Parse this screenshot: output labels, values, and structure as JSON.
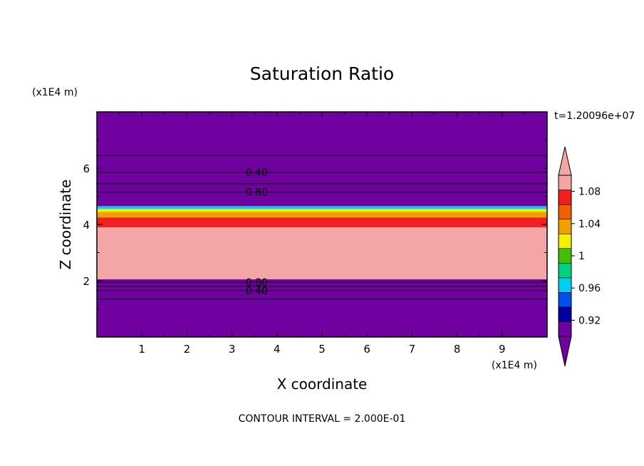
{
  "chart_data": {
    "type": "heatmap",
    "title": "Saturation Ratio",
    "xlabel": "X coordinate",
    "ylabel": "Z coordinate",
    "x_unit": "(x1E4 m)",
    "y_unit": "(x1E4 m)",
    "time_label": "t=1.20096e+07",
    "footer": "CONTOUR INTERVAL = 2.000E-01",
    "xlim": [
      0,
      10
    ],
    "ylim": [
      0,
      8
    ],
    "x_ticks": [
      "1",
      "2",
      "3",
      "4",
      "5",
      "6",
      "7",
      "8",
      "9"
    ],
    "y_ticks": [
      "2",
      "4",
      "6"
    ],
    "contour_labels": [
      {
        "text": "0.40",
        "x": 3.55,
        "z": 5.85
      },
      {
        "text": "0.80",
        "x": 3.55,
        "z": 5.15
      },
      {
        "text": "0.80",
        "x": 3.55,
        "z": 1.95
      },
      {
        "text": "0.40",
        "x": 3.55,
        "z": 1.65
      }
    ],
    "colorbar": {
      "ticks": [
        "1.08",
        "1.04",
        "1",
        "0.96",
        "0.92"
      ],
      "levels": [
        0.9,
        0.92,
        0.94,
        0.96,
        0.98,
        1.0,
        1.02,
        1.04,
        1.06,
        1.08,
        1.1
      ],
      "colors": [
        "#7000a0",
        "#00009c",
        "#0050f0",
        "#00d0f0",
        "#00d080",
        "#40c000",
        "#f0f000",
        "#f0a000",
        "#f06000",
        "#f02020",
        "#f4a6a6"
      ],
      "under_color": "#7000a0",
      "over_color": "#f4a6a6"
    },
    "bands": [
      {
        "z0": 0.0,
        "z1": 2.05,
        "value": 0.5,
        "color": "#7000a0"
      },
      {
        "z0": 2.05,
        "z1": 3.9,
        "value": 1.1,
        "color": "#f4a6a6"
      },
      {
        "z0": 3.9,
        "z1": 4.25,
        "value": 1.08,
        "color": "#f02020"
      },
      {
        "z0": 4.25,
        "z1": 4.45,
        "value": 1.05,
        "color": "#f0a000"
      },
      {
        "z0": 4.45,
        "z1": 4.55,
        "value": 1.03,
        "color": "#f0f000"
      },
      {
        "z0": 4.55,
        "z1": 4.65,
        "value": 0.97,
        "color": "#00d0f0"
      },
      {
        "z0": 4.65,
        "z1": 8.0,
        "value": 0.4,
        "color": "#7000a0"
      }
    ],
    "contour_lines_z": [
      1.35,
      1.65,
      1.8,
      1.95,
      5.15,
      5.45,
      5.85,
      6.45
    ]
  }
}
